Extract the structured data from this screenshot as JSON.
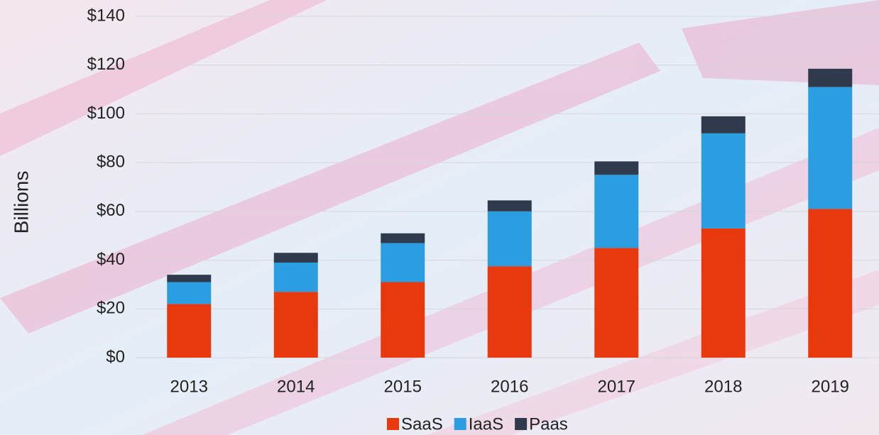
{
  "chart_data": {
    "type": "stacked-bar",
    "y_label": "Billions",
    "categories": [
      "2013",
      "2014",
      "2015",
      "2016",
      "2017",
      "2018",
      "2019"
    ],
    "series": [
      {
        "name": "SaaS",
        "color": "#e8380d",
        "values": [
          22,
          27,
          31,
          37.5,
          45,
          53,
          61
        ]
      },
      {
        "name": "IaaS",
        "color": "#2a9ee0",
        "values": [
          9,
          12,
          16,
          22.5,
          30,
          39,
          50
        ]
      },
      {
        "name": "Paas",
        "color": "#2f3b4c",
        "values": [
          3,
          4,
          4,
          4.5,
          5.5,
          7,
          7.5
        ]
      }
    ],
    "ylim": [
      0,
      140
    ],
    "yticks": [
      {
        "value": 0,
        "label": "$0"
      },
      {
        "value": 20,
        "label": "$20"
      },
      {
        "value": 40,
        "label": "$40"
      },
      {
        "value": 60,
        "label": "$60"
      },
      {
        "value": 80,
        "label": "$80"
      },
      {
        "value": 100,
        "label": "$100"
      },
      {
        "value": 120,
        "label": "$120"
      },
      {
        "value": 140,
        "label": "$140"
      }
    ],
    "grid": true,
    "legend": "bottom"
  }
}
